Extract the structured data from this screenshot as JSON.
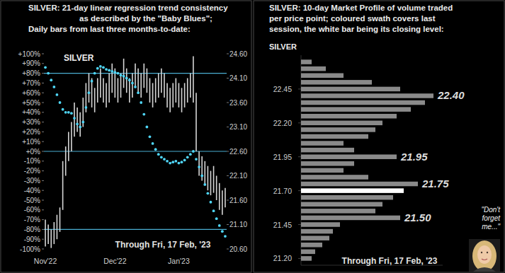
{
  "chart_data": [
    {
      "type": "combo",
      "title": [
        "SILVER:  21-day linear regression trend consistency",
        "as described by the \"Baby Blues\";",
        "Daily bars from last three months-to-date:"
      ],
      "label": "SILVER",
      "subtitle": "Through Fri, 17 Feb, '23",
      "categories": [
        "Nov'22",
        null,
        null,
        null,
        null,
        null,
        null,
        null,
        null,
        null,
        null,
        null,
        null,
        null,
        null,
        null,
        null,
        null,
        null,
        null,
        null,
        null,
        null,
        null,
        "Dec'22",
        null,
        null,
        null,
        null,
        null,
        null,
        null,
        null,
        null,
        null,
        null,
        null,
        null,
        null,
        null,
        null,
        null,
        null,
        null,
        null,
        null,
        "Jan'23",
        null,
        null,
        null,
        null,
        null,
        null,
        null,
        null,
        null,
        null,
        null,
        null,
        null,
        null,
        null,
        null
      ],
      "series": [
        {
          "type": "range",
          "color": "#d6d6d6",
          "axis": "y2",
          "high": [
            21.2,
            21.1,
            21.0,
            21.15,
            21.3,
            21.45,
            22.4,
            22.7,
            23.0,
            23.2,
            23.6,
            23.5,
            23.4,
            23.7,
            24.0,
            24.2,
            24.1,
            23.9,
            24.1,
            24.3,
            24.1,
            24.0,
            24.2,
            24.4,
            24.3,
            24.1,
            24.2,
            24.5,
            24.3,
            24.1,
            24.2,
            24.4,
            24.3,
            24.2,
            24.4,
            24.3,
            24.1,
            24.0,
            24.1,
            24.2,
            24.3,
            24.2,
            24.0,
            23.9,
            24.0,
            24.1,
            24.0,
            23.9,
            24.0,
            24.1,
            24.2,
            24.55,
            23.8,
            22.6,
            22.5,
            22.4,
            22.3,
            22.2,
            22.3,
            22.1,
            21.95,
            21.8,
            21.85
          ],
          "low": [
            20.65,
            20.7,
            20.62,
            20.7,
            20.8,
            20.95,
            21.4,
            22.1,
            22.4,
            22.6,
            22.9,
            23.0,
            22.9,
            23.1,
            23.4,
            23.6,
            23.5,
            23.4,
            23.6,
            23.7,
            23.6,
            23.5,
            23.6,
            23.8,
            23.7,
            23.6,
            23.7,
            23.9,
            23.8,
            23.6,
            23.7,
            23.9,
            23.8,
            23.7,
            23.9,
            23.8,
            23.6,
            23.5,
            23.6,
            23.7,
            23.8,
            23.7,
            23.5,
            23.4,
            23.5,
            23.6,
            23.5,
            23.4,
            23.5,
            23.6,
            23.7,
            23.6,
            22.6,
            22.1,
            22.0,
            21.9,
            21.8,
            21.7,
            21.75,
            21.6,
            21.4,
            21.3,
            21.45
          ]
        },
        {
          "type": "scatter",
          "color": "#4fd6f7",
          "marker": "circle",
          "values": [
            86,
            80,
            73,
            66,
            58,
            50,
            43,
            40,
            40,
            39,
            34,
            28,
            25,
            30,
            45,
            60,
            72,
            80,
            85,
            87,
            86,
            84,
            83,
            82,
            81,
            80,
            78,
            77,
            75,
            73,
            70,
            66,
            60,
            50,
            38,
            25,
            15,
            8,
            2,
            -3,
            -6,
            -8,
            -10,
            -12,
            -11,
            -10,
            -12,
            -11,
            -9,
            -6,
            -3,
            0,
            -8,
            -16,
            -25,
            -34,
            -43,
            -52,
            -61,
            -69,
            -76,
            -82,
            -87
          ]
        }
      ],
      "hlines": [
        80,
        0,
        -80
      ],
      "ylim": [
        -100,
        100
      ],
      "yticks": [
        {
          "value": 100,
          "label": "+100%"
        },
        {
          "value": 90,
          "label": "+90%"
        },
        {
          "value": 80,
          "label": "+80%"
        },
        {
          "value": 70,
          "label": "+70%"
        },
        {
          "value": 60,
          "label": "+60%"
        },
        {
          "value": 50,
          "label": "+50%"
        },
        {
          "value": 40,
          "label": "+40%"
        },
        {
          "value": 30,
          "label": "+30%"
        },
        {
          "value": 20,
          "label": "+20%"
        },
        {
          "value": 10,
          "label": "+10%"
        },
        {
          "value": 0,
          "label": "+0%"
        },
        {
          "value": -10,
          "label": "-10%"
        },
        {
          "value": -20,
          "label": "-20%"
        },
        {
          "value": -30,
          "label": "-30%"
        },
        {
          "value": -40,
          "label": "-40%"
        },
        {
          "value": -50,
          "label": "-50%"
        },
        {
          "value": -60,
          "label": "-60%"
        },
        {
          "value": -70,
          "label": "-70%"
        },
        {
          "value": -80,
          "label": "-80%"
        },
        {
          "value": -90,
          "label": "-90%"
        },
        {
          "value": -100,
          "label": "-100%"
        }
      ],
      "y2lim": [
        20.6,
        24.6
      ],
      "y2ticks": [
        {
          "value": 24.6,
          "label": "24.60"
        },
        {
          "value": 24.1,
          "label": "24.10"
        },
        {
          "value": 23.6,
          "label": "23.60"
        },
        {
          "value": 23.1,
          "label": "23.10"
        },
        {
          "value": 22.6,
          "label": "22.60"
        },
        {
          "value": 22.1,
          "label": "22.10"
        },
        {
          "value": 21.6,
          "label": "21.60"
        },
        {
          "value": 21.1,
          "label": "21.10"
        },
        {
          "value": 20.6,
          "label": "20.60"
        }
      ]
    },
    {
      "type": "bar",
      "orientation": "horizontal",
      "title": [
        "SILVER:  10-day Market Profile of volume traded",
        "per price point; coloured swath covers last",
        "session, the white bar being its closing level:"
      ],
      "label": "SILVER",
      "subtitle": "Through Fri, 17 Feb, '23",
      "y": [
        22.65,
        22.6,
        22.55,
        22.5,
        22.45,
        22.4,
        22.35,
        22.3,
        22.25,
        22.2,
        22.15,
        22.1,
        22.05,
        22.0,
        21.95,
        21.9,
        21.85,
        21.8,
        21.75,
        21.7,
        21.65,
        21.6,
        21.55,
        21.5,
        21.45,
        21.4,
        21.35,
        21.3,
        21.25,
        21.2
      ],
      "values": [
        15,
        35,
        60,
        100,
        140,
        187,
        175,
        155,
        135,
        115,
        105,
        95,
        60,
        75,
        135,
        75,
        60,
        95,
        165,
        145,
        130,
        115,
        105,
        140,
        55,
        45,
        40,
        30,
        20,
        15
      ],
      "colors": [
        "#8a8a8a",
        "#8a8a8a",
        "#8a8a8a",
        "#8a8a8a",
        "#8a8a8a",
        "#8a8a8a",
        "#8a8a8a",
        "#8a8a8a",
        "#8a8a8a",
        "#8a8a8a",
        "#8a8a8a",
        "#8a8a8a",
        "#8a8a8a",
        "#8a8a8a",
        "#8a8a8a",
        "#8a8a8a",
        "#8a8a8a",
        "#8a8a8a",
        "#8a8a8a",
        "#ffffff",
        "#8a8a8a",
        "#8a8a8a",
        "#8a8a8a",
        "#8a8a8a",
        "#8a8a8a",
        "#8a8a8a",
        "#8a8a8a",
        "#8a8a8a",
        "#8a8a8a",
        "#8a8a8a"
      ],
      "xlim": [
        0,
        200
      ],
      "ylim": [
        21.15,
        22.7
      ],
      "yticks": [
        22.45,
        {
          "value": 22.2,
          "label": "22.20"
        },
        21.95,
        {
          "value": 21.7,
          "label": "21.70"
        },
        21.45,
        {
          "value": 21.2,
          "label": "21.20"
        }
      ],
      "tick_labels": "y",
      "annotations": [
        {
          "value": 22.4,
          "label": "22.40"
        },
        21.95,
        21.75,
        {
          "value": 21.5,
          "label": "21.50"
        }
      ],
      "callout": "\"Don't forget me...\""
    }
  ]
}
